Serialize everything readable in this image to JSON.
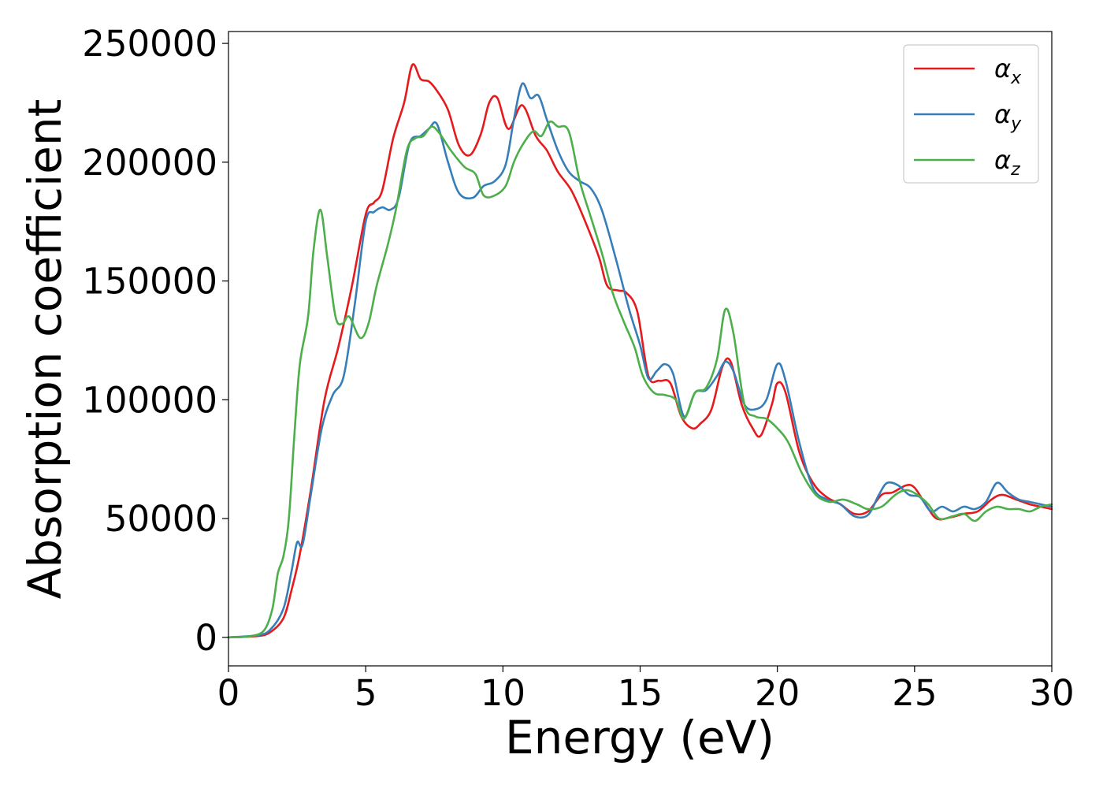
{
  "chart_data": {
    "type": "line",
    "title": "",
    "xlabel": "Energy (eV)",
    "ylabel": "Absorption coefficient",
    "xlim": [
      0,
      30
    ],
    "ylim": [
      -12000,
      255000
    ],
    "xticks": [
      0,
      5,
      10,
      15,
      20,
      25,
      30
    ],
    "xtick_labels": [
      "0",
      "5",
      "10",
      "15",
      "20",
      "25",
      "30"
    ],
    "yticks": [
      0,
      50000,
      100000,
      150000,
      200000,
      250000
    ],
    "ytick_labels": [
      "0",
      "50000",
      "100000",
      "150000",
      "200000",
      "250000"
    ],
    "grid": false,
    "legend_position": "top-right",
    "series": [
      {
        "name": "α",
        "subscript": "x",
        "color": "#e41a1c",
        "points": [
          [
            0,
            0
          ],
          [
            1,
            500
          ],
          [
            1.5,
            2000
          ],
          [
            2,
            8000
          ],
          [
            2.3,
            20000
          ],
          [
            2.6,
            35000
          ],
          [
            3,
            62000
          ],
          [
            3.5,
            100000
          ],
          [
            4,
            122000
          ],
          [
            4.5,
            148000
          ],
          [
            5,
            178000
          ],
          [
            5.3,
            183000
          ],
          [
            5.6,
            188000
          ],
          [
            6,
            210000
          ],
          [
            6.4,
            225000
          ],
          [
            6.7,
            241000
          ],
          [
            7,
            235000
          ],
          [
            7.3,
            234000
          ],
          [
            7.6,
            230000
          ],
          [
            8,
            222000
          ],
          [
            8.4,
            207000
          ],
          [
            8.8,
            203000
          ],
          [
            9.2,
            212000
          ],
          [
            9.5,
            225000
          ],
          [
            9.8,
            227000
          ],
          [
            10.2,
            214000
          ],
          [
            10.7,
            224000
          ],
          [
            11.2,
            211000
          ],
          [
            11.6,
            205000
          ],
          [
            12,
            196000
          ],
          [
            12.5,
            188000
          ],
          [
            13,
            175000
          ],
          [
            13.5,
            160000
          ],
          [
            13.8,
            148000
          ],
          [
            14.2,
            146000
          ],
          [
            14.5,
            145000
          ],
          [
            14.9,
            137000
          ],
          [
            15.3,
            110000
          ],
          [
            15.7,
            108000
          ],
          [
            16.1,
            107000
          ],
          [
            16.5,
            93000
          ],
          [
            16.9,
            88000
          ],
          [
            17.2,
            90000
          ],
          [
            17.6,
            96000
          ],
          [
            18,
            114000
          ],
          [
            18.3,
            116000
          ],
          [
            18.7,
            98000
          ],
          [
            19.1,
            88000
          ],
          [
            19.4,
            85000
          ],
          [
            19.8,
            98000
          ],
          [
            20,
            107000
          ],
          [
            20.3,
            103000
          ],
          [
            20.8,
            78000
          ],
          [
            21.3,
            65000
          ],
          [
            21.8,
            59000
          ],
          [
            22.3,
            56000
          ],
          [
            22.8,
            52000
          ],
          [
            23.3,
            53000
          ],
          [
            23.8,
            60000
          ],
          [
            24.2,
            61000
          ],
          [
            24.7,
            64000
          ],
          [
            25,
            63000
          ],
          [
            25.4,
            56000
          ],
          [
            25.8,
            50000
          ],
          [
            26.3,
            50500
          ],
          [
            26.8,
            52000
          ],
          [
            27.3,
            53000
          ],
          [
            27.8,
            58000
          ],
          [
            28.2,
            60000
          ],
          [
            28.7,
            58000
          ],
          [
            29.2,
            56000
          ],
          [
            29.6,
            55000
          ],
          [
            30,
            54000
          ]
        ]
      },
      {
        "name": "α",
        "subscript": "y",
        "color": "#377eb8",
        "points": [
          [
            0,
            0
          ],
          [
            1,
            800
          ],
          [
            1.5,
            3000
          ],
          [
            2,
            12000
          ],
          [
            2.3,
            28000
          ],
          [
            2.5,
            40000
          ],
          [
            2.7,
            39000
          ],
          [
            3,
            60000
          ],
          [
            3.4,
            88000
          ],
          [
            3.8,
            102000
          ],
          [
            4.2,
            110000
          ],
          [
            4.6,
            140000
          ],
          [
            5,
            175000
          ],
          [
            5.3,
            179000
          ],
          [
            5.6,
            181000
          ],
          [
            5.9,
            180000
          ],
          [
            6.2,
            185000
          ],
          [
            6.6,
            208000
          ],
          [
            7,
            211000
          ],
          [
            7.3,
            214000
          ],
          [
            7.6,
            216000
          ],
          [
            8,
            200000
          ],
          [
            8.4,
            187000
          ],
          [
            8.9,
            185000
          ],
          [
            9.3,
            190000
          ],
          [
            9.7,
            192000
          ],
          [
            10.1,
            199000
          ],
          [
            10.4,
            218000
          ],
          [
            10.7,
            233000
          ],
          [
            11,
            227000
          ],
          [
            11.3,
            228000
          ],
          [
            11.6,
            218000
          ],
          [
            12,
            205000
          ],
          [
            12.4,
            196000
          ],
          [
            12.8,
            192000
          ],
          [
            13.2,
            189000
          ],
          [
            13.6,
            180000
          ],
          [
            14.1,
            160000
          ],
          [
            14.6,
            138000
          ],
          [
            15,
            123000
          ],
          [
            15.3,
            109000
          ],
          [
            15.6,
            112000
          ],
          [
            15.9,
            115000
          ],
          [
            16.2,
            111000
          ],
          [
            16.6,
            93000
          ],
          [
            17,
            103000
          ],
          [
            17.4,
            104000
          ],
          [
            17.8,
            110000
          ],
          [
            18.1,
            116000
          ],
          [
            18.4,
            112000
          ],
          [
            18.8,
            98000
          ],
          [
            19.2,
            96000
          ],
          [
            19.6,
            100000
          ],
          [
            20,
            115000
          ],
          [
            20.3,
            108000
          ],
          [
            20.8,
            82000
          ],
          [
            21.3,
            63000
          ],
          [
            21.8,
            58000
          ],
          [
            22.3,
            56000
          ],
          [
            22.8,
            51000
          ],
          [
            23.3,
            51500
          ],
          [
            23.7,
            60000
          ],
          [
            24,
            65000
          ],
          [
            24.4,
            64000
          ],
          [
            24.8,
            60000
          ],
          [
            25.2,
            59000
          ],
          [
            25.6,
            53000
          ],
          [
            26,
            55000
          ],
          [
            26.4,
            53000
          ],
          [
            26.8,
            55000
          ],
          [
            27.2,
            54000
          ],
          [
            27.6,
            57000
          ],
          [
            28,
            65000
          ],
          [
            28.4,
            61000
          ],
          [
            28.8,
            58000
          ],
          [
            29.2,
            57000
          ],
          [
            29.6,
            56000
          ],
          [
            30,
            55000
          ]
        ]
      },
      {
        "name": "α",
        "subscript": "z",
        "color": "#4daf4a",
        "points": [
          [
            0,
            0
          ],
          [
            0.8,
            500
          ],
          [
            1.3,
            3000
          ],
          [
            1.6,
            12000
          ],
          [
            1.8,
            27000
          ],
          [
            2,
            34000
          ],
          [
            2.2,
            50000
          ],
          [
            2.4,
            85000
          ],
          [
            2.6,
            115000
          ],
          [
            2.9,
            135000
          ],
          [
            3.1,
            163000
          ],
          [
            3.35,
            180000
          ],
          [
            3.6,
            160000
          ],
          [
            3.9,
            135000
          ],
          [
            4.15,
            132000
          ],
          [
            4.4,
            135000
          ],
          [
            4.8,
            126000
          ],
          [
            5.1,
            132000
          ],
          [
            5.4,
            148000
          ],
          [
            5.8,
            165000
          ],
          [
            6.1,
            180000
          ],
          [
            6.5,
            205000
          ],
          [
            6.8,
            210000
          ],
          [
            7.1,
            211000
          ],
          [
            7.4,
            215000
          ],
          [
            7.7,
            212000
          ],
          [
            8.1,
            205000
          ],
          [
            8.6,
            198000
          ],
          [
            9,
            195000
          ],
          [
            9.3,
            186000
          ],
          [
            9.7,
            186000
          ],
          [
            10.1,
            190000
          ],
          [
            10.4,
            200000
          ],
          [
            10.7,
            207000
          ],
          [
            11.1,
            213000
          ],
          [
            11.4,
            211000
          ],
          [
            11.7,
            217000
          ],
          [
            12,
            215000
          ],
          [
            12.4,
            213000
          ],
          [
            12.8,
            192000
          ],
          [
            13.2,
            177000
          ],
          [
            13.6,
            162000
          ],
          [
            14,
            145000
          ],
          [
            14.4,
            133000
          ],
          [
            14.8,
            122000
          ],
          [
            15.1,
            110000
          ],
          [
            15.5,
            103000
          ],
          [
            15.9,
            102000
          ],
          [
            16.3,
            100000
          ],
          [
            16.6,
            92000
          ],
          [
            17,
            103000
          ],
          [
            17.4,
            105000
          ],
          [
            17.8,
            117000
          ],
          [
            18.1,
            138000
          ],
          [
            18.4,
            128000
          ],
          [
            18.8,
            98000
          ],
          [
            19.2,
            93000
          ],
          [
            19.6,
            92000
          ],
          [
            20,
            88000
          ],
          [
            20.4,
            82000
          ],
          [
            20.9,
            69000
          ],
          [
            21.4,
            60000
          ],
          [
            21.9,
            57000
          ],
          [
            22.4,
            58000
          ],
          [
            22.9,
            56000
          ],
          [
            23.3,
            54000
          ],
          [
            23.8,
            55000
          ],
          [
            24.3,
            60000
          ],
          [
            24.7,
            62000
          ],
          [
            25.1,
            60000
          ],
          [
            25.5,
            56000
          ],
          [
            25.9,
            50000
          ],
          [
            26.4,
            51000
          ],
          [
            26.8,
            52000
          ],
          [
            27.2,
            49000
          ],
          [
            27.6,
            53000
          ],
          [
            28,
            55000
          ],
          [
            28.4,
            54000
          ],
          [
            28.8,
            54000
          ],
          [
            29.2,
            53000
          ],
          [
            29.6,
            55000
          ],
          [
            30,
            56000
          ]
        ]
      }
    ]
  }
}
